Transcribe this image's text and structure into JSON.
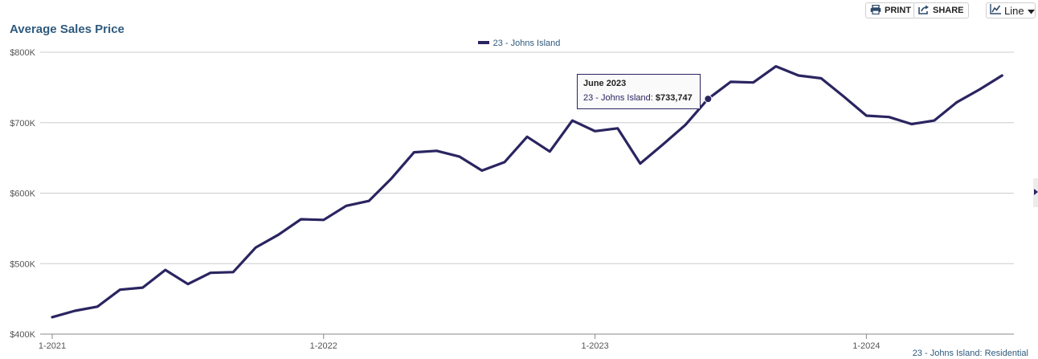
{
  "title": "Average Sales Price",
  "toolbar": {
    "print_label": "PRINT",
    "share_label": "SHARE",
    "chart_type_label": "Line"
  },
  "icons": {
    "print": "printer-icon",
    "share": "share-icon",
    "chart_type": "line-chart-icon",
    "dropdown": "caret-down-icon"
  },
  "legend": {
    "label": "23 - Johns Island"
  },
  "tooltip": {
    "title": "June 2023",
    "series_label": "23 - Johns Island:",
    "value": "$733,747"
  },
  "source_label": "23 - Johns Island: Residential",
  "colors": {
    "line": "#2a2560",
    "grid": "#cccccc",
    "title": "#2e5a7d"
  },
  "chart_data": {
    "type": "line",
    "title": "Average Sales Price",
    "xlabel": "",
    "ylabel": "",
    "y_ticks": [
      "$400K",
      "$500K",
      "$600K",
      "$700K",
      "$800K"
    ],
    "x_ticks": [
      "1-2021",
      "1-2022",
      "1-2023",
      "1-2024"
    ],
    "ylim": [
      400000,
      800000
    ],
    "grid": true,
    "legend_position": "top-center",
    "series": [
      {
        "name": "23 - Johns Island",
        "x": [
          "1-2021",
          "2-2021",
          "3-2021",
          "4-2021",
          "5-2021",
          "6-2021",
          "7-2021",
          "8-2021",
          "9-2021",
          "10-2021",
          "11-2021",
          "12-2021",
          "1-2022",
          "2-2022",
          "3-2022",
          "4-2022",
          "5-2022",
          "6-2022",
          "7-2022",
          "8-2022",
          "9-2022",
          "10-2022",
          "11-2022",
          "12-2022",
          "1-2023",
          "2-2023",
          "3-2023",
          "4-2023",
          "5-2023",
          "6-2023",
          "7-2023",
          "8-2023",
          "9-2023",
          "10-2023",
          "11-2023",
          "12-2023",
          "1-2024",
          "2-2024",
          "3-2024",
          "4-2024",
          "5-2024",
          "6-2024",
          "7-2024"
        ],
        "values": [
          424000,
          433000,
          439000,
          463000,
          466000,
          491000,
          471000,
          487000,
          488000,
          523000,
          541000,
          563000,
          562000,
          582000,
          589000,
          621000,
          658000,
          660000,
          652000,
          632000,
          644000,
          680000,
          659000,
          703000,
          688000,
          692000,
          642000,
          669000,
          697000,
          733747,
          758000,
          757000,
          780000,
          767000,
          763000,
          737000,
          710000,
          708000,
          698000,
          703000,
          729000,
          747000,
          767000
        ]
      }
    ],
    "highlight": {
      "x": "6-2023",
      "value": 733747
    }
  }
}
